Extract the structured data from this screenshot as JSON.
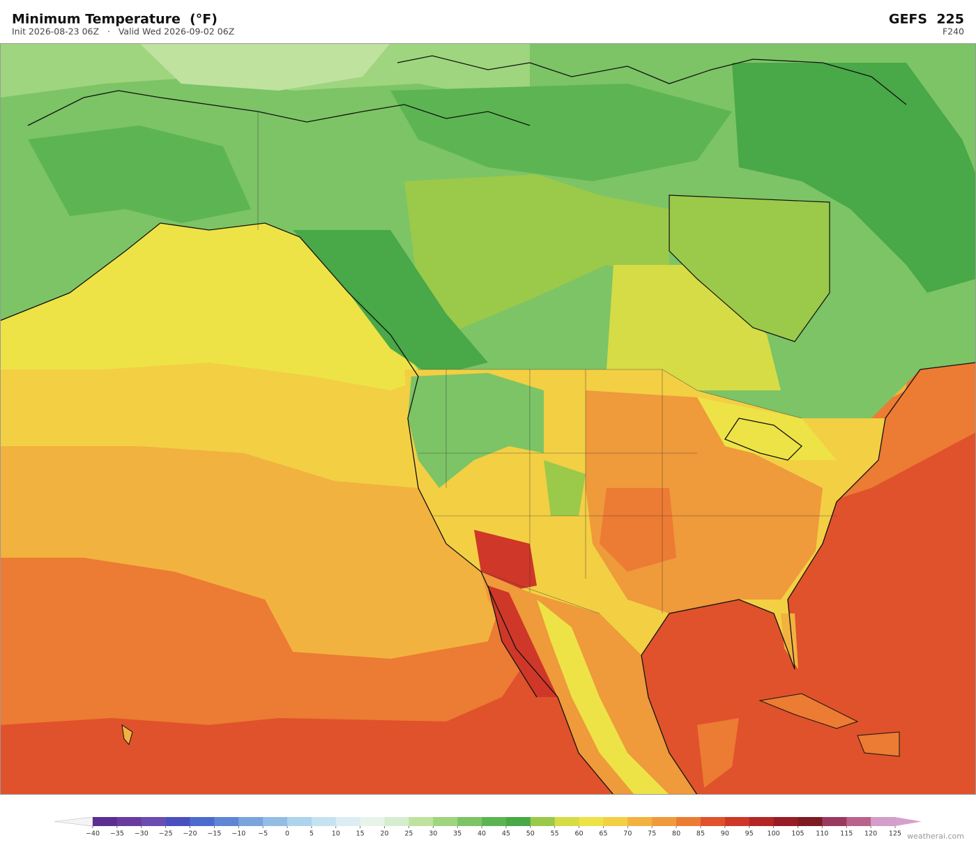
{
  "header": {
    "title": "Minimum Temperature  (°F)",
    "subtitle": "Init 2026-08-23 06Z   ·   Valid Wed 2026-09-02 06Z",
    "model": "GEFS  225",
    "forecast_hour": "F240"
  },
  "colorbar": {
    "ticks": [
      {
        "value": -40,
        "label": "−40"
      },
      {
        "value": -35,
        "label": "−35"
      },
      {
        "value": -30,
        "label": "−30"
      },
      {
        "value": -25,
        "label": "−25"
      },
      {
        "value": -20,
        "label": "−20"
      },
      {
        "value": -15,
        "label": "−15"
      },
      {
        "value": -10,
        "label": "−10"
      },
      {
        "value": -5,
        "label": "−5"
      },
      0,
      5,
      10,
      15,
      20,
      25,
      30,
      35,
      40,
      45,
      50,
      55,
      60,
      65,
      70,
      75,
      80,
      85,
      90,
      95,
      100,
      105,
      110,
      115,
      120,
      125
    ],
    "colors": [
      "#5b2e92",
      "#6a3b9e",
      "#6b4cb0",
      "#4a4fc0",
      "#4c6bcc",
      "#5f86d4",
      "#7aa4dc",
      "#94bde4",
      "#aed3ec",
      "#c5e2f0",
      "#dcedf3",
      "#e8f3ea",
      "#d7edcf",
      "#bfe29f",
      "#9fd57e",
      "#7cc466",
      "#5cb552",
      "#49a847",
      "#9bc94a",
      "#d6dc45",
      "#ede346",
      "#f3cf44",
      "#f2b23f",
      "#ef9a3b",
      "#ec7b33",
      "#e0522b",
      "#cf3728",
      "#b42625",
      "#981c24",
      "#7d1a22",
      "#9a3a5e",
      "#b8628c",
      "#d39ec9"
    ],
    "under_color": "#f4f4f4",
    "over_color": "#d6a0cd"
  },
  "watermark": "weatherai.com"
}
